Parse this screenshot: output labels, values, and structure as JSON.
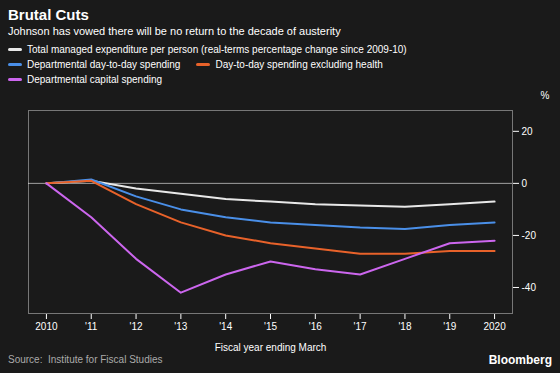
{
  "chart_data": {
    "type": "line",
    "title": "Brutal Cuts",
    "subtitle": "Johnson has vowed there will be no return to the decade of austerity",
    "xlabel": "Fiscal year ending March",
    "ylabel": "%",
    "annotations": [
      "Source:  Institute for Fiscal Studies",
      "Bloomberg"
    ],
    "x": [
      2010,
      2011,
      2012,
      2013,
      2014,
      2015,
      2016,
      2017,
      2018,
      2019,
      2020
    ],
    "series": [
      {
        "name": "Total managed expenditure per person (real-terms percentage change since 2009-10)",
        "color": "#e8e8e8",
        "values": [
          0,
          1,
          -2,
          -4,
          -6,
          -7,
          -8,
          -8.5,
          -9,
          -8,
          -7
        ]
      },
      {
        "name": "Departmental day-to-day spending",
        "color": "#4a8fe8",
        "values": [
          0,
          1.5,
          -5,
          -10,
          -13,
          -15,
          -16,
          -17,
          -17.5,
          -16,
          -15
        ]
      },
      {
        "name": "Day-to-day spending excluding health",
        "color": "#e8622a",
        "values": [
          0,
          1,
          -8,
          -15,
          -20,
          -23,
          -25,
          -27,
          -27,
          -26,
          -26
        ]
      },
      {
        "name": "Departmental capital spending",
        "color": "#cc66ee",
        "values": [
          0,
          -13,
          -29,
          -42,
          -35,
          -30,
          -33,
          -35,
          -29,
          -23,
          -22
        ]
      }
    ],
    "xlim": [
      2009.6,
      2020.4
    ],
    "xticks": [
      2010,
      {
        "value": 2011,
        "label": "'11"
      },
      {
        "value": 2012,
        "label": "'12"
      },
      {
        "value": 2013,
        "label": "'13"
      },
      {
        "value": 2014,
        "label": "'14"
      },
      {
        "value": 2015,
        "label": "'15"
      },
      {
        "value": 2016,
        "label": "'16"
      },
      {
        "value": 2017,
        "label": "'17"
      },
      {
        "value": 2018,
        "label": "'18"
      },
      {
        "value": 2019,
        "label": "'19"
      },
      2020
    ],
    "ylim": [
      -50,
      28
    ],
    "yticks": [
      20,
      0,
      -20,
      -40
    ],
    "grid": false,
    "legend": "top"
  }
}
